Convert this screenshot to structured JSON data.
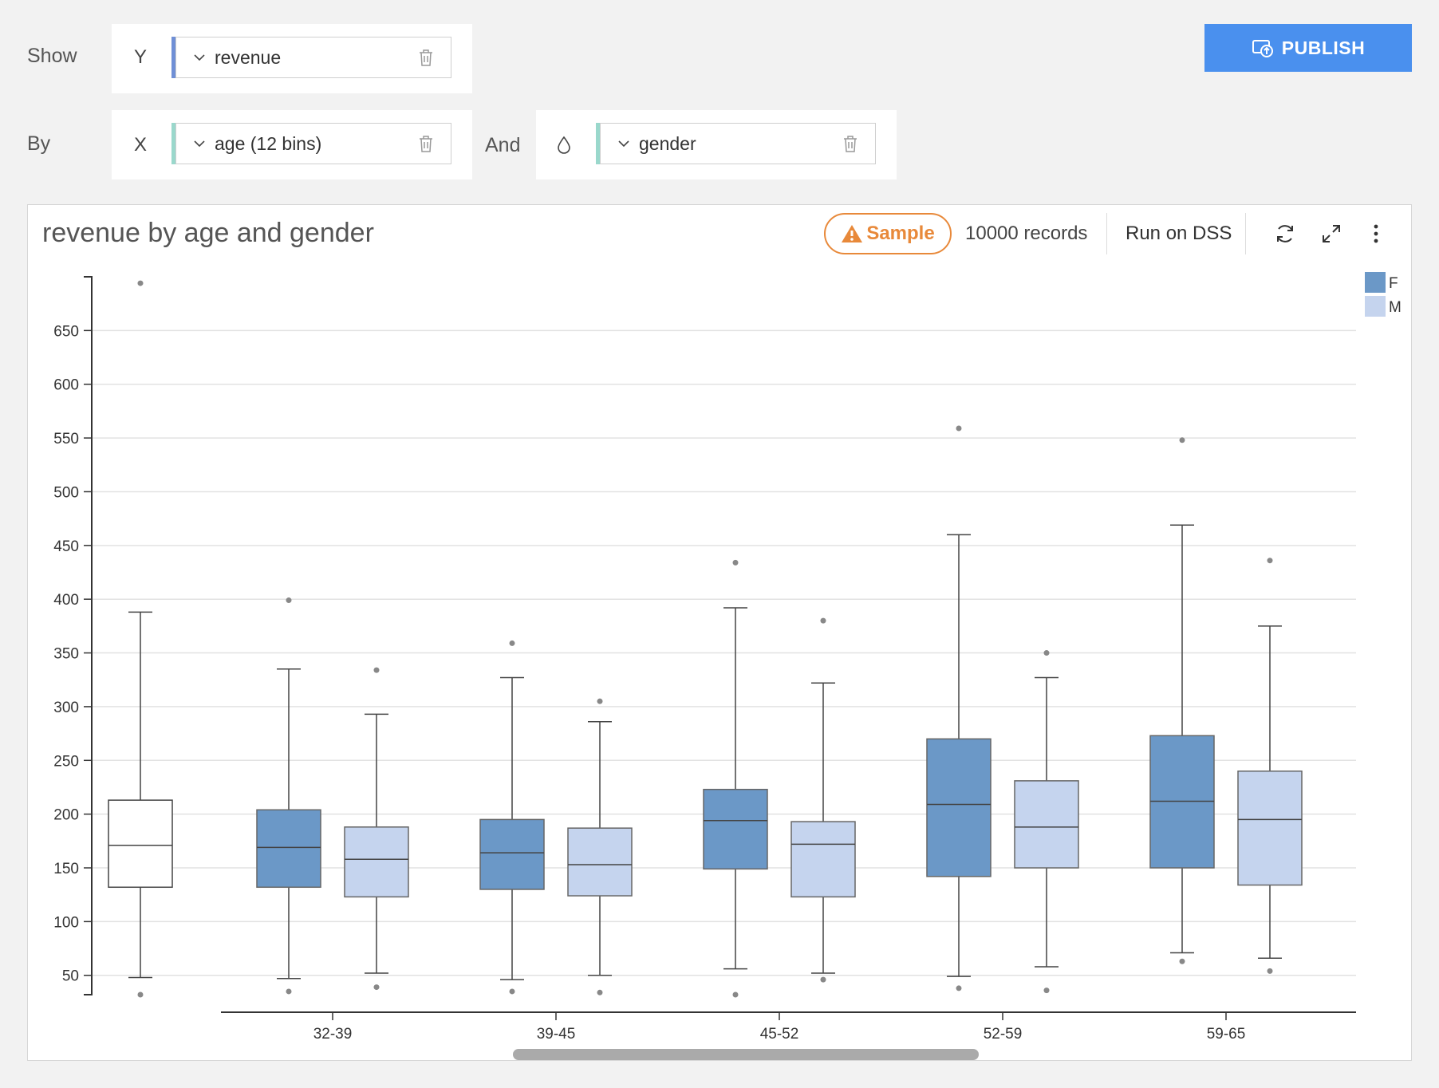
{
  "shelf": {
    "show_label": "Show",
    "by_label": "By",
    "and_label": "And",
    "y_letter": "Y",
    "x_letter": "X",
    "y_field": "revenue",
    "x_field": "age (12 bins)",
    "color_field": "gender",
    "y_accent": "#6f8fd6",
    "x_accent": "#9ad8cc",
    "color_accent": "#9ad8cc",
    "color_icon": "droplet-icon"
  },
  "toolbar": {
    "publish_label": "PUBLISH",
    "publish_icon": "publish-icon",
    "sample_label": "Sample",
    "records_label": "10000 records",
    "run_label": "Run on DSS",
    "refresh_icon": "refresh-icon",
    "expand_icon": "expand-icon",
    "more_icon": "more-vertical-icon"
  },
  "colors": {
    "F": "#6b98c7",
    "M": "#c5d4ee",
    "accent": "#4a90ee",
    "warning": "#e8893a"
  },
  "chart_data": {
    "type": "boxplot",
    "title": "revenue by age and gender",
    "xlabel": "",
    "ylabel": "",
    "categories": [
      "",
      "32-39",
      "39-45",
      "45-52",
      "52-59",
      "59-65"
    ],
    "ylim": [
      32,
      700
    ],
    "yticks": [
      50,
      100,
      150,
      200,
      250,
      300,
      350,
      400,
      450,
      500,
      550,
      600,
      650
    ],
    "grid": true,
    "legend": {
      "position": "top-right",
      "entries": [
        "F",
        "M"
      ]
    },
    "series": [
      {
        "name": "F",
        "boxes": [
          {
            "category": "",
            "whisker_low": 48,
            "q1": 132,
            "median": 171,
            "q3": 213,
            "whisker_high": 388,
            "outliers": [
              694,
              32
            ],
            "unfilled": true
          },
          {
            "category": "32-39",
            "whisker_low": 47,
            "q1": 132,
            "median": 169,
            "q3": 204,
            "whisker_high": 335,
            "outliers": [
              399,
              35
            ]
          },
          {
            "category": "39-45",
            "whisker_low": 46,
            "q1": 130,
            "median": 164,
            "q3": 195,
            "whisker_high": 327,
            "outliers": [
              359,
              35
            ]
          },
          {
            "category": "45-52",
            "whisker_low": 56,
            "q1": 149,
            "median": 194,
            "q3": 223,
            "whisker_high": 392,
            "outliers": [
              434,
              32
            ]
          },
          {
            "category": "52-59",
            "whisker_low": 49,
            "q1": 142,
            "median": 209,
            "q3": 270,
            "whisker_high": 460,
            "outliers": [
              559,
              38
            ]
          },
          {
            "category": "59-65",
            "whisker_low": 71,
            "q1": 150,
            "median": 212,
            "q3": 273,
            "whisker_high": 469,
            "outliers": [
              548,
              63
            ]
          }
        ]
      },
      {
        "name": "M",
        "boxes": [
          {
            "category": "32-39",
            "whisker_low": 52,
            "q1": 123,
            "median": 158,
            "q3": 188,
            "whisker_high": 293,
            "outliers": [
              334,
              39
            ]
          },
          {
            "category": "39-45",
            "whisker_low": 50,
            "q1": 124,
            "median": 153,
            "q3": 187,
            "whisker_high": 286,
            "outliers": [
              305,
              34
            ]
          },
          {
            "category": "45-52",
            "whisker_low": 52,
            "q1": 123,
            "median": 172,
            "q3": 193,
            "whisker_high": 322,
            "outliers": [
              380,
              46
            ]
          },
          {
            "category": "52-59",
            "whisker_low": 58,
            "q1": 150,
            "median": 188,
            "q3": 231,
            "whisker_high": 327,
            "outliers": [
              350,
              36
            ]
          },
          {
            "category": "59-65",
            "whisker_low": 66,
            "q1": 134,
            "median": 195,
            "q3": 240,
            "whisker_high": 375,
            "outliers": [
              436,
              54
            ]
          }
        ]
      }
    ]
  }
}
